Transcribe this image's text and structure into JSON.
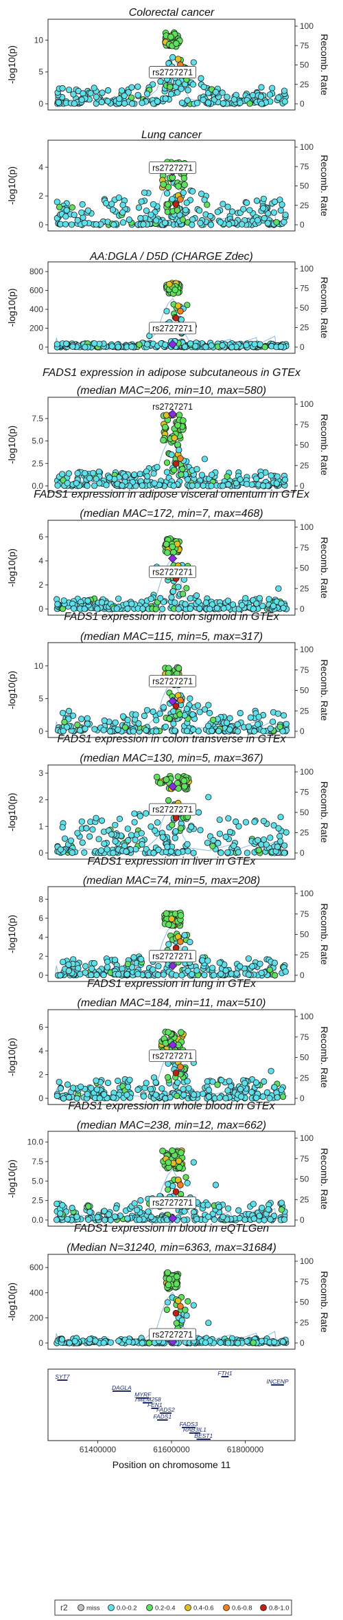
{
  "figure": {
    "y_label": "-log10(p)",
    "y2_label": "Recomb. Rate",
    "x_label": "Position on chromosome 11",
    "lead_snp": "rs2727271",
    "x_ticks": [
      "61400000",
      "61600000",
      "61800000"
    ]
  },
  "legend": {
    "title": "r2",
    "items": [
      {
        "label": "miss",
        "color": "#c0c0c0"
      },
      {
        "label": "0.0-0.2",
        "color": "#5ee0ea"
      },
      {
        "label": "0.2-0.4",
        "color": "#5fe05f"
      },
      {
        "label": "0.4-0.6",
        "color": "#e0c020"
      },
      {
        "label": "0.6-0.8",
        "color": "#f08020"
      },
      {
        "label": "0.8-1.0",
        "color": "#c02010"
      }
    ]
  },
  "colors": {
    "low": "#5ee0ea",
    "mid": "#5fe05f",
    "high": "#e0c020",
    "orange": "#f08020",
    "red": "#c02010",
    "lead": "#8a2be2",
    "recomb": "#6aa8e0"
  },
  "genes": [
    {
      "name": "SYT7"
    },
    {
      "name": "DAGLA"
    },
    {
      "name": "MYRF"
    },
    {
      "name": "TMEM258"
    },
    {
      "name": "FEN1"
    },
    {
      "name": "FADS2"
    },
    {
      "name": "FADS1"
    },
    {
      "name": "FADS3"
    },
    {
      "name": "RAB3IL1"
    },
    {
      "name": "BEST1"
    },
    {
      "name": "FTH1"
    },
    {
      "name": "INCENP"
    }
  ],
  "chart_data": [
    {
      "type": "scatter",
      "title": [
        "Colorectal cancer"
      ],
      "yticks": [
        "0",
        "5",
        "10"
      ],
      "ymax": 12.2,
      "y2ticks": [
        "0",
        "25",
        "50",
        "75",
        "100"
      ],
      "x_range": [
        61280000,
        61920000
      ]
    },
    {
      "type": "scatter",
      "title": [
        "Lung cancer"
      ],
      "yticks": [
        "0",
        "2",
        "4"
      ],
      "ymax": 5.4,
      "y2ticks": [
        "0",
        "25",
        "50",
        "75",
        "100"
      ],
      "x_range": [
        61280000,
        61920000
      ]
    },
    {
      "type": "scatter",
      "title": [
        "AA:DGLA / D5D (CHARGE Zdec)"
      ],
      "yticks": [
        "0",
        "200",
        "400",
        "600",
        "800"
      ],
      "ymax": 830,
      "y2ticks": [
        "0",
        "25",
        "50",
        "75",
        "100"
      ],
      "x_range": [
        61280000,
        61920000
      ]
    },
    {
      "type": "scatter",
      "title": [
        "FADS1 expression in adipose subcutaneous in GTEx",
        "(median MAC=206, min=10, max=580)"
      ],
      "yticks": [
        "0.0",
        "2.5",
        "5.0",
        "7.5"
      ],
      "ymax": 9.1,
      "y2ticks": [
        "0",
        "25",
        "50",
        "75",
        "100"
      ],
      "x_range": [
        61280000,
        61920000
      ]
    },
    {
      "type": "scatter",
      "title": [
        "FADS1 expression in adipose visceral omentum in GTEx",
        "(median MAC=172, min=7, max=468)"
      ],
      "yticks": [
        "0",
        "2",
        "4",
        "6"
      ],
      "ymax": 6.8,
      "y2ticks": [
        "0",
        "25",
        "50",
        "75",
        "100"
      ],
      "x_range": [
        61280000,
        61920000
      ]
    },
    {
      "type": "scatter",
      "title": [
        "FADS1 expression in colon sigmoid in GTEx",
        "(median MAC=115, min=5, max=317)"
      ],
      "yticks": [
        "0",
        "5",
        "10"
      ],
      "ymax": 12.5,
      "y2ticks": [
        "0",
        "25",
        "50",
        "75",
        "100"
      ],
      "x_range": [
        61280000,
        61920000
      ]
    },
    {
      "type": "scatter",
      "title": [
        "FADS1 expression in colon transverse in GTEx",
        "(median MAC=130, min=5, max=367)"
      ],
      "yticks": [
        "0",
        "1",
        "2",
        "3"
      ],
      "ymax": 3.05,
      "y2ticks": [
        "0",
        "25",
        "50",
        "75",
        "100"
      ],
      "x_range": [
        61280000,
        61920000
      ]
    },
    {
      "type": "scatter",
      "title": [
        "FADS1 expression in liver in GTEx",
        "(median MAC=74, min=5, max=208)"
      ],
      "yticks": [
        "0",
        "2",
        "4",
        "6",
        "8"
      ],
      "ymax": 8.6,
      "y2ticks": [
        "0",
        "25",
        "50",
        "75",
        "100"
      ],
      "x_range": [
        61280000,
        61920000
      ]
    },
    {
      "type": "scatter",
      "title": [
        "FADS1 expression in lung in GTEx",
        "(median MAC=184, min=11, max=510)"
      ],
      "yticks": [
        "0",
        "2",
        "4",
        "6"
      ],
      "ymax": 6.9,
      "y2ticks": [
        "0",
        "25",
        "50",
        "75",
        "100"
      ],
      "x_range": [
        61280000,
        61920000
      ]
    },
    {
      "type": "scatter",
      "title": [
        "FADS1 expression in whole blood in GTEx",
        "(median MAC=238, min=12, max=662)"
      ],
      "yticks": [
        "0.0",
        "2.5",
        "5.0",
        "7.5",
        "10.0"
      ],
      "ymax": 10.5,
      "y2ticks": [
        "0",
        "25",
        "50",
        "75",
        "100"
      ],
      "x_range": [
        61280000,
        61920000
      ]
    },
    {
      "type": "scatter",
      "title": [
        "FADS1 expression in blood in eQTLGen",
        "(Median N=31240, min=6363, max=31684)"
      ],
      "yticks": [
        "0",
        "200",
        "400",
        "600"
      ],
      "ymax": 650,
      "y2ticks": [
        "0",
        "25",
        "50",
        "75",
        "100"
      ],
      "x_range": [
        61280000,
        61920000
      ]
    }
  ]
}
